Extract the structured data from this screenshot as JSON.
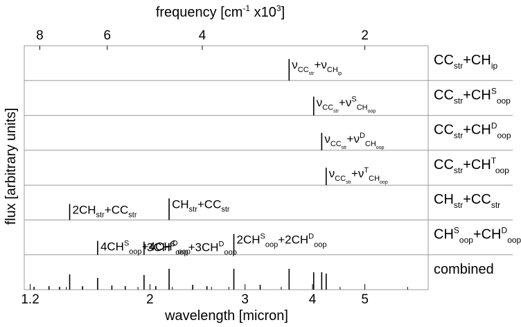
{
  "chart_data": {
    "type": "stacked-stick-spectra",
    "top_axis": {
      "label": "frequency [cm",
      "label_sup_1": "-1",
      "label_mid": " x10",
      "label_sup_2": "3",
      "label_end": "]",
      "ticks": [
        8,
        6,
        4,
        2
      ]
    },
    "bottom_axis": {
      "label": "wavelength [micron]",
      "scale": "log",
      "ticks": [
        1.2,
        2,
        3,
        4,
        5
      ],
      "xlim": [
        1.17,
        6.55
      ]
    },
    "ylabel": "flux [arbitrary units]",
    "panels": [
      {
        "legend": {
          "parts": [
            [
              "CC",
              ""
            ],
            [
              "str",
              "sub"
            ],
            [
              "+CH",
              ""
            ],
            [
              "ip",
              "sub"
            ]
          ]
        },
        "sticks": [
          {
            "x": 3.62,
            "h": 0.62
          }
        ],
        "label": {
          "at_stick": 0,
          "parts": [
            [
              "ν",
              ""
            ],
            [
              "CC",
              "sub"
            ],
            [
              "str",
              "subsub"
            ],
            [
              "+ν",
              ""
            ],
            [
              "CH",
              "sub"
            ],
            [
              "ip",
              "subsub"
            ]
          ]
        }
      },
      {
        "legend": {
          "parts": [
            [
              "CC",
              ""
            ],
            [
              "str",
              "sub"
            ],
            [
              "+CH",
              ""
            ],
            [
              "S",
              "sup"
            ],
            [
              "oop",
              "sub"
            ]
          ]
        },
        "sticks": [
          {
            "x": 4.02,
            "h": 0.54
          }
        ],
        "label": {
          "at_stick": 0,
          "parts": [
            [
              "ν",
              ""
            ],
            [
              "CC",
              "sub"
            ],
            [
              "str",
              "subsub"
            ],
            [
              "+ν",
              ""
            ],
            [
              "S",
              "sup"
            ],
            [
              "CH",
              "sub"
            ],
            [
              "oop",
              "subsub"
            ]
          ]
        }
      },
      {
        "legend": {
          "parts": [
            [
              "CC",
              ""
            ],
            [
              "str",
              "sub"
            ],
            [
              "+CH",
              ""
            ],
            [
              "D",
              "sup"
            ],
            [
              "oop",
              "sub"
            ]
          ]
        },
        "sticks": [
          {
            "x": 4.16,
            "h": 0.5
          }
        ],
        "label": {
          "at_stick": 0,
          "parts": [
            [
              "ν",
              ""
            ],
            [
              "CC",
              "sub"
            ],
            [
              "str",
              "subsub"
            ],
            [
              "+ν",
              ""
            ],
            [
              "D",
              "sup"
            ],
            [
              "CH",
              "sub"
            ],
            [
              "oop",
              "subsub"
            ]
          ]
        }
      },
      {
        "legend": {
          "parts": [
            [
              "CC",
              ""
            ],
            [
              "str",
              "sub"
            ],
            [
              "+CH",
              ""
            ],
            [
              "T",
              "sup"
            ],
            [
              "oop",
              "sub"
            ]
          ]
        },
        "sticks": [
          {
            "x": 4.24,
            "h": 0.5
          }
        ],
        "label": {
          "at_stick": 0,
          "parts": [
            [
              "ν",
              ""
            ],
            [
              "CC",
              "sub"
            ],
            [
              "str",
              "subsub"
            ],
            [
              "+ν",
              ""
            ],
            [
              "T",
              "sup"
            ],
            [
              "CH",
              "sub"
            ],
            [
              "oop",
              "subsub"
            ]
          ]
        }
      },
      {
        "legend": {
          "parts": [
            [
              "CH",
              ""
            ],
            [
              "str",
              "sub"
            ],
            [
              "+CC",
              ""
            ],
            [
              "str",
              "sub"
            ]
          ]
        },
        "sticks": [
          {
            "x": 1.42,
            "h": 0.46
          },
          {
            "x": 2.17,
            "h": 0.62
          }
        ],
        "labels": [
          {
            "at_stick": 0,
            "parts": [
              [
                "2CH",
                ""
              ],
              [
                "str",
                "sub"
              ],
              [
                "+CC",
                ""
              ],
              [
                "str",
                "sub"
              ]
            ]
          },
          {
            "at_stick": 1,
            "parts": [
              [
                "CH",
                ""
              ],
              [
                "str",
                "sub"
              ],
              [
                "+CC",
                ""
              ],
              [
                "str",
                "sub"
              ]
            ]
          }
        ]
      },
      {
        "legend": {
          "parts": [
            [
              "CH",
              ""
            ],
            [
              "S",
              "sup"
            ],
            [
              "oop",
              "sub"
            ],
            [
              "+CH",
              ""
            ],
            [
              "D",
              "sup"
            ],
            [
              "oop",
              "sub"
            ]
          ]
        },
        "sticks": [
          {
            "x": 1.6,
            "h": 0.4
          },
          {
            "x": 1.95,
            "h": 0.38
          },
          {
            "x": 2.86,
            "h": 0.6
          }
        ],
        "labels": [
          {
            "at_stick": 0,
            "parts": [
              [
                "4CH",
                ""
              ],
              [
                "S",
                "sup"
              ],
              [
                "oop",
                "sub"
              ],
              [
                "+4CH",
                ""
              ],
              [
                "D",
                "sup"
              ],
              [
                "oop",
                "sub"
              ]
            ]
          },
          {
            "at_stick": 1,
            "parts": [
              [
                "3CH",
                ""
              ],
              [
                "S",
                "sup"
              ],
              [
                "oop",
                "sub"
              ],
              [
                "+3CH",
                ""
              ],
              [
                "D",
                "sup"
              ],
              [
                "oop",
                "sub"
              ]
            ]
          },
          {
            "at_stick": 2,
            "parts": [
              [
                "2CH",
                ""
              ],
              [
                "S",
                "sup"
              ],
              [
                "oop",
                "sub"
              ],
              [
                "+2CH",
                ""
              ],
              [
                "D",
                "sup"
              ],
              [
                "oop",
                "sub"
              ]
            ]
          }
        ]
      },
      {
        "legend": {
          "parts": [
            [
              "combined",
              ""
            ]
          ]
        },
        "sticks": [
          {
            "x": 1.22,
            "h": 0.08
          },
          {
            "x": 1.3,
            "h": 0.1
          },
          {
            "x": 1.36,
            "h": 0.08
          },
          {
            "x": 1.42,
            "h": 0.44
          },
          {
            "x": 1.5,
            "h": 0.1
          },
          {
            "x": 1.6,
            "h": 0.34
          },
          {
            "x": 1.7,
            "h": 0.12
          },
          {
            "x": 1.8,
            "h": 0.1
          },
          {
            "x": 1.95,
            "h": 0.42
          },
          {
            "x": 2.05,
            "h": 0.1
          },
          {
            "x": 2.17,
            "h": 0.6
          },
          {
            "x": 2.4,
            "h": 0.14
          },
          {
            "x": 2.55,
            "h": 0.1
          },
          {
            "x": 2.86,
            "h": 0.6
          },
          {
            "x": 3.2,
            "h": 0.14
          },
          {
            "x": 3.62,
            "h": 0.6
          },
          {
            "x": 4.02,
            "h": 0.5
          },
          {
            "x": 4.16,
            "h": 0.5
          },
          {
            "x": 4.24,
            "h": 0.46
          }
        ]
      }
    ]
  }
}
